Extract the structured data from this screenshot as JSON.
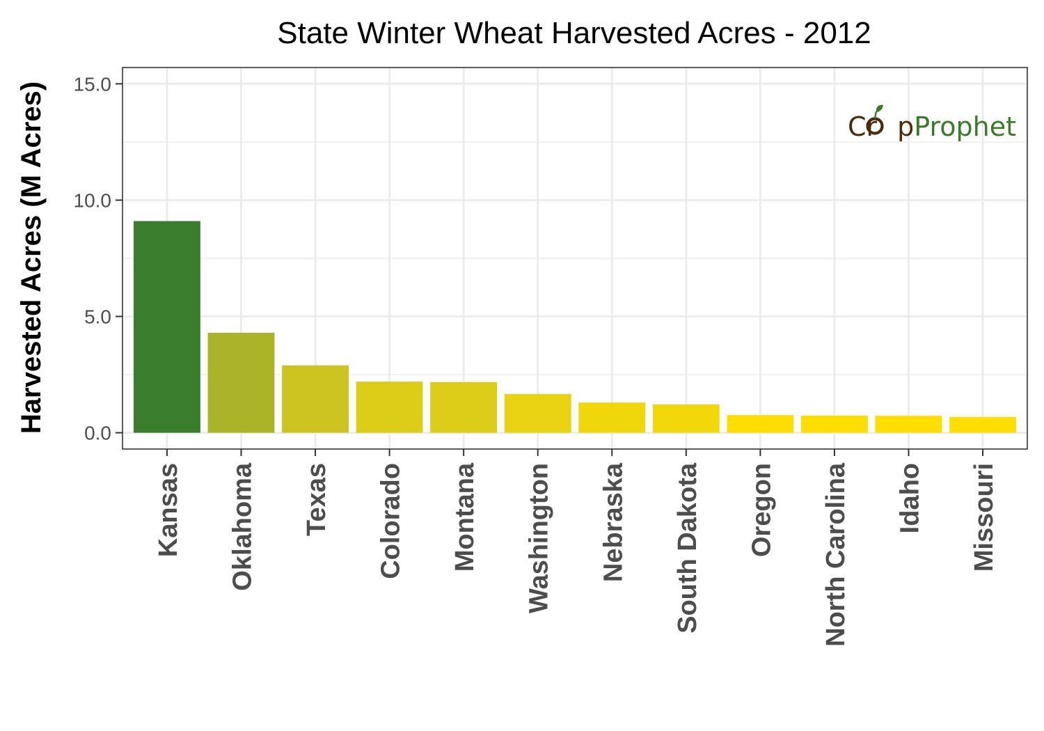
{
  "chart_data": {
    "type": "bar",
    "title": "State Winter Wheat Harvested Acres - 2012",
    "xlabel": "",
    "ylabel": "Harvested Acres (M Acres)",
    "ylim": [
      -0.7,
      15.7
    ],
    "yticks": [
      0.0,
      5.0,
      10.0,
      15.0
    ],
    "ytick_labels": [
      "0.0",
      "5.0",
      "10.0",
      "15.0"
    ],
    "grid": true,
    "categories": [
      "Kansas",
      "Oklahoma",
      "Texas",
      "Colorado",
      "Montana",
      "Washington",
      "Nebraska",
      "South Dakota",
      "Oregon",
      "North Carolina",
      "Idaho",
      "Missouri"
    ],
    "values": [
      9.1,
      4.3,
      2.9,
      2.2,
      2.18,
      1.67,
      1.3,
      1.22,
      0.76,
      0.74,
      0.73,
      0.68
    ],
    "colors": [
      "#3a7d2c",
      "#abb428",
      "#cdc422",
      "#dccd18",
      "#dccd18",
      "#e8d212",
      "#f0d70c",
      "#f2d80a",
      "#ffde00",
      "#ffde00",
      "#ffde00",
      "#ffde00"
    ]
  },
  "logo": {
    "part1_a": "Cr",
    "part1_b": "p",
    "part2": "Prophet",
    "color_crop": "#4a2c0a",
    "color_prophet": "#3a7a2a"
  }
}
